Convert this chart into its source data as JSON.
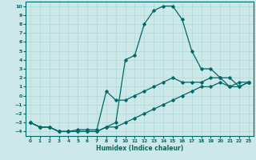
{
  "xlabel": "Humidex (Indice chaleur)",
  "xlim": [
    -0.5,
    23.5
  ],
  "ylim": [
    -4.5,
    10.5
  ],
  "xticks": [
    0,
    1,
    2,
    3,
    4,
    5,
    6,
    7,
    8,
    9,
    10,
    11,
    12,
    13,
    14,
    15,
    16,
    17,
    18,
    19,
    20,
    21,
    22,
    23
  ],
  "yticks": [
    -4,
    -3,
    -2,
    -1,
    0,
    1,
    2,
    3,
    4,
    5,
    6,
    7,
    8,
    9,
    10
  ],
  "background_color": "#cde8e8",
  "grid_color": "#aad4d4",
  "line_color": "#006868",
  "line_width": 0.9,
  "marker": "D",
  "marker_size": 1.8,
  "line1_y": [
    -3,
    -3.5,
    -3.5,
    -4,
    -4,
    -4,
    -4,
    -4,
    -3.5,
    -3,
    4,
    4.5,
    8,
    9.5,
    10,
    10,
    8.5,
    5,
    3,
    3,
    2,
    1,
    1.5,
    1.5
  ],
  "line2_y": [
    -3,
    -3.5,
    -3.5,
    -4,
    -4,
    -3.8,
    -3.8,
    -3.8,
    0.5,
    -0.5,
    -0.5,
    0,
    0.5,
    1,
    1.5,
    2,
    1.5,
    1.5,
    1.5,
    2,
    2,
    2,
    1,
    1.5
  ],
  "line3_y": [
    -3,
    -3.5,
    -3.5,
    -4,
    -4,
    -4,
    -4,
    -4,
    -3.5,
    -3.5,
    -3,
    -2.5,
    -2,
    -1.5,
    -1,
    -0.5,
    0,
    0.5,
    1,
    1,
    1.5,
    1,
    1,
    1.5
  ]
}
